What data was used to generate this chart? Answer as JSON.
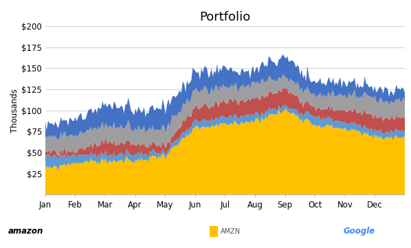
{
  "title": "Portfolio",
  "ylabel": "Thousands",
  "ylim": [
    0,
    200
  ],
  "yticks": [
    0,
    25,
    50,
    75,
    100,
    125,
    150,
    175,
    200
  ],
  "ytick_labels": [
    "",
    "$25",
    "$50",
    "$75",
    "$100",
    "$125",
    "$150",
    "$175",
    "$200"
  ],
  "months": [
    "Jan",
    "Feb",
    "Mar",
    "Apr",
    "May",
    "Jun",
    "Jul",
    "Aug",
    "Sep",
    "Oct",
    "Nov",
    "Dec"
  ],
  "colors": {
    "AMZN": "#FFC000",
    "GOOG": "#5B9BD5",
    "NFLX": "#C0504D",
    "UNH": "#9E9EA0",
    "FB": "#4472C4"
  },
  "background": "#FFFFFF",
  "plot_bg": "#FFFFFF",
  "grid_color": "#D3D3D3",
  "AMZN": [
    30,
    38,
    40,
    40,
    47,
    78,
    83,
    88,
    100,
    83,
    78,
    68
  ],
  "GOOG": [
    15,
    8,
    8,
    8,
    4,
    8,
    8,
    8,
    5,
    10,
    8,
    7
  ],
  "NFLX": [
    5,
    5,
    15,
    12,
    8,
    15,
    18,
    18,
    20,
    10,
    15,
    16
  ],
  "UNH": [
    18,
    18,
    20,
    18,
    20,
    20,
    18,
    18,
    15,
    15,
    18,
    20
  ],
  "FB": [
    15,
    18,
    25,
    22,
    25,
    22,
    20,
    15,
    25,
    15,
    15,
    12
  ],
  "noise_seed": 99
}
